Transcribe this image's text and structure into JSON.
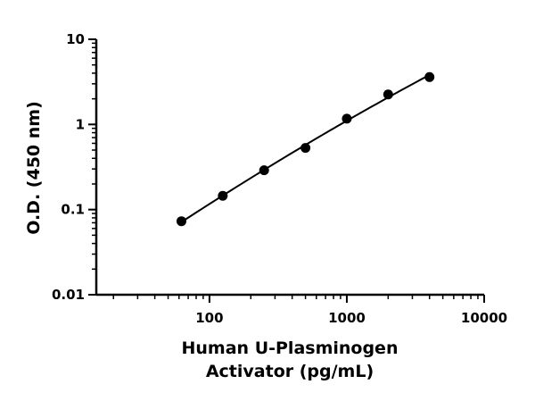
{
  "chart_data": {
    "type": "scatter",
    "title": "",
    "xlabel_lines": [
      "Human U-Plasminogen",
      "Activator (pg/mL)"
    ],
    "ylabel": "O.D. (450 nm)",
    "x_scale": "log",
    "y_scale": "log",
    "xlim": [
      15,
      10000
    ],
    "ylim": [
      0.01,
      10
    ],
    "x_ticks": [
      100,
      1000,
      10000
    ],
    "x_tick_labels": [
      "100",
      "1000",
      "10000"
    ],
    "y_ticks": [
      0.01,
      0.1,
      1,
      10
    ],
    "y_tick_labels": [
      "0.01",
      "0.1",
      "1",
      "10"
    ],
    "grid": false,
    "legend": "none",
    "series": [
      {
        "x": [
          62.5,
          125,
          250,
          500,
          1000,
          2000,
          4000
        ],
        "y": [
          0.073,
          0.145,
          0.29,
          0.53,
          1.17,
          2.25,
          3.6
        ],
        "marker": "filled-circle",
        "fit_line": true
      }
    ],
    "colors": {
      "points": "#000000",
      "line": "#000000",
      "axes": "#000000"
    }
  }
}
